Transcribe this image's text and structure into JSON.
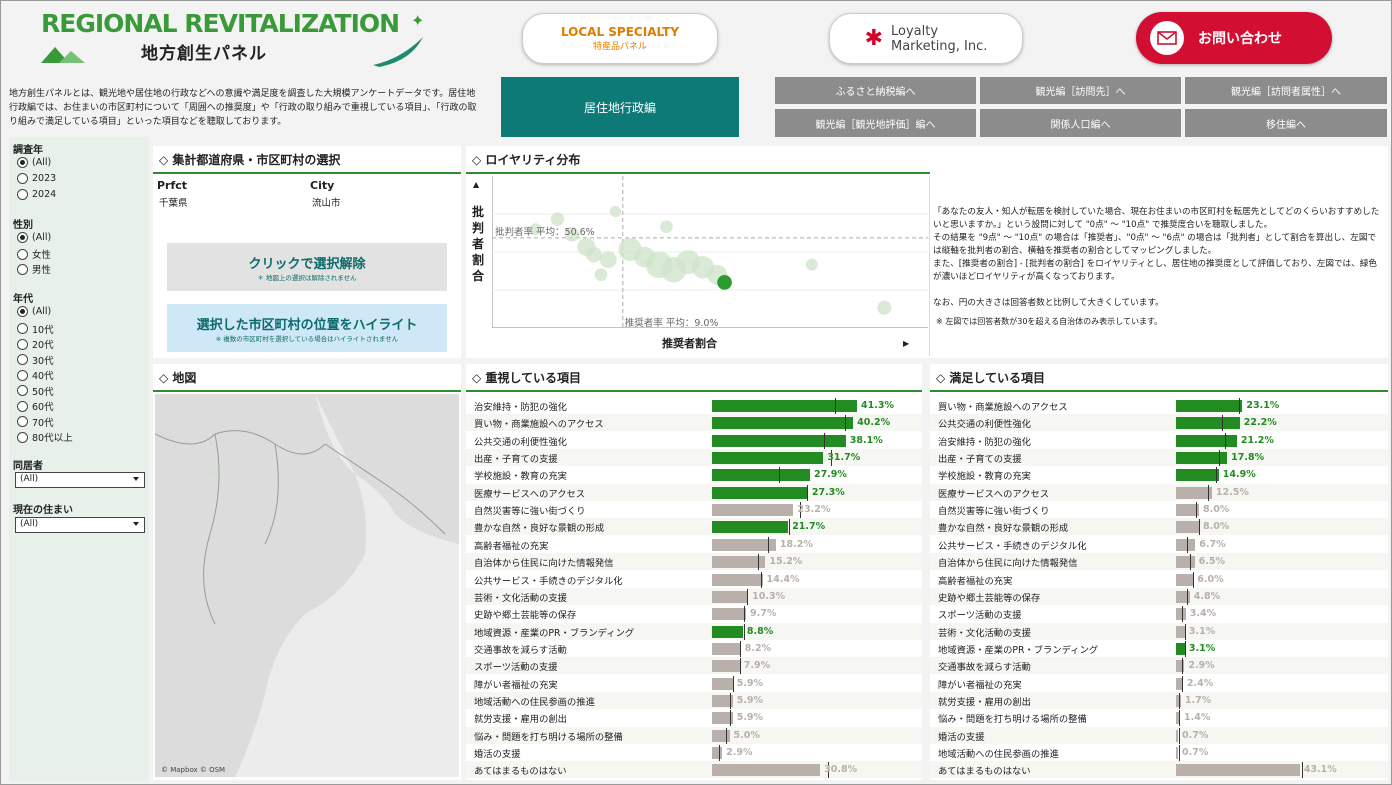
{
  "header": {
    "logo_en": "REGIONAL REVITALIZATION",
    "logo_jp": "地方創生パネル",
    "local_specialty_title": "LOCAL SPECIALTY",
    "local_specialty_sub": "特産品パネル",
    "loyalty_line1": "Loyalty",
    "loyalty_line2": "Marketing, Inc.",
    "contact_label": "お問い合わせ",
    "intro_text": "地方創生パネルとは、観光地や居住地の行政などへの意識や満足度を調査した大規模アンケートデータです。居住地行政編では、お住まいの市区町村について「周囲への推奨度」や「行政の取り組みで重視している項目」、「行政の取り組みで満足している項目」といった項目などを聴取しております。"
  },
  "nav": {
    "active": "居住地行政編",
    "buttons": [
      "ふるさと納税編へ",
      "観光編［訪問先］へ",
      "観光編［訪問者属性］へ",
      "観光編［観光地評価］編へ",
      "関係人口編へ",
      "移住編へ"
    ]
  },
  "filters": {
    "year_label": "調査年",
    "year_options": [
      "(All)",
      "2023",
      "2024"
    ],
    "gender_label": "性別",
    "gender_options": [
      "(All)",
      "女性",
      "男性"
    ],
    "age_label": "年代",
    "age_options": [
      "(All)",
      "10代",
      "20代",
      "30代",
      "40代",
      "50代",
      "60代",
      "70代",
      "80代以上"
    ],
    "cohabit_label": "同居者",
    "cohabit_value": "(All)",
    "residence_label": "現在の住まい",
    "residence_value": "(All)"
  },
  "selection": {
    "title": "集計都道府県・市区町村の選択",
    "col1": "Prfct",
    "col2": "City",
    "val1": "千葉県",
    "val2": "流山市",
    "clear_label": "クリックで選択解除",
    "clear_note": "＊ 地図上の選択は解除されません",
    "highlight_label": "選択した市区町村の位置をハイライト",
    "highlight_note": "※ 複数の市区町村を選択している場合はハイライトされません"
  },
  "loyalty": {
    "title": "ロイヤリティ分布",
    "y_label": "批判者割合",
    "x_label": "推奨者割合",
    "h_ref_label": "批判者率 平均：50.6%",
    "v_ref_label": "推奨者率 平均：9.0%",
    "description": "「あなたの友人・知人が転居を検討していた場合、現在お住まいの市区町村を転居先としてどのくらいおすすめしたいと思いますか。」という設問に対して \"0点\" ～ \"10点\" で推奨度合いを聴取しました。\nその結果を \"9点\" ～ \"10点\" の場合は「推奨者」、\"0点\" ～ \"6点\" の場合は「批判者」として割合を算出し、左図では縦軸を批判者の割合、横軸を推奨者の割合としてマッピングしました。\nまた、[推奨者の割合] - [批判者の割合] をロイヤリティとし、居住地の推奨度として評価しており、左図では、緑色が濃いほどロイヤリティが高くなっております。\n\nなお、円の大きさは回答者数と比例して大きくしています。",
    "note": "※ 左図では回答者数が30を超える自治体のみ表示しています。"
  },
  "map": {
    "title": "地図",
    "credit": "© Mapbox © OSM"
  },
  "chart_data": [
    {
      "type": "bar",
      "title": "重視している項目",
      "categories": [
        "治安維持・防犯の強化",
        "買い物・商業施設へのアクセス",
        "公共交通の利便性強化",
        "出産・子育ての支援",
        "学校施設・教育の充実",
        "医療サービスへのアクセス",
        "自然災害等に強い街づくり",
        "豊かな自然・良好な景観の形成",
        "高齢者福祉の充実",
        "自治体から住民に向けた情報発信",
        "公共サービス・手続きのデジタル化",
        "芸術・文化活動の支援",
        "史跡や郷土芸能等の保存",
        "地域資源・産業のPR・ブランディング",
        "交通事故を減らす活動",
        "スポーツ活動の支援",
        "障がい者福祉の充実",
        "地域活動への住民参画の推進",
        "就労支援・雇用の創出",
        "悩み・問題を打ち明ける場所の整備",
        "婚活の支援",
        "あてはまるものはない"
      ],
      "values": [
        41.3,
        40.2,
        38.1,
        31.7,
        27.9,
        27.3,
        23.2,
        21.7,
        18.2,
        15.2,
        14.4,
        10.3,
        9.7,
        8.8,
        8.2,
        7.9,
        5.9,
        5.9,
        5.9,
        5.0,
        2.9,
        30.8
      ],
      "labels": [
        "41.3%",
        "40.2%",
        "38.1%",
        "31.7%",
        "27.9%",
        "27.3%",
        "23.2%",
        "21.7%",
        "18.2%",
        "15.2%",
        "14.4%",
        "10.3%",
        "9.7%",
        "8.8%",
        "8.2%",
        "7.9%",
        "5.9%",
        "5.9%",
        "5.9%",
        "5.0%",
        "2.9%",
        "30.8%"
      ],
      "highlight": [
        true,
        true,
        true,
        true,
        true,
        true,
        false,
        true,
        false,
        false,
        false,
        false,
        false,
        true,
        false,
        false,
        false,
        false,
        false,
        false,
        false,
        false
      ],
      "reference": [
        35,
        38,
        32,
        34,
        19,
        27,
        25,
        22,
        16,
        13,
        14,
        10,
        9,
        9,
        8,
        8,
        6,
        5,
        5,
        4,
        2,
        33
      ],
      "colors": {
        "high": "#228b22",
        "normal": "#b9b0ac"
      }
    },
    {
      "type": "bar",
      "title": "満足している項目",
      "categories": [
        "買い物・商業施設へのアクセス",
        "公共交通の利便性強化",
        "治安維持・防犯の強化",
        "出産・子育ての支援",
        "学校施設・教育の充実",
        "医療サービスへのアクセス",
        "自然災害等に強い街づくり",
        "豊かな自然・良好な景観の形成",
        "公共サービス・手続きのデジタル化",
        "自治体から住民に向けた情報発信",
        "高齢者福祉の充実",
        "史跡や郷土芸能等の保存",
        "スポーツ活動の支援",
        "芸術・文化活動の支援",
        "地域資源・産業のPR・ブランディング",
        "交通事故を減らす活動",
        "障がい者福祉の充実",
        "就労支援・雇用の創出",
        "悩み・問題を打ち明ける場所の整備",
        "婚活の支援",
        "地域活動への住民参画の推進",
        "あてはまるものはない"
      ],
      "values": [
        23.1,
        22.2,
        21.2,
        17.8,
        14.9,
        12.5,
        8.0,
        8.0,
        6.7,
        6.5,
        6.0,
        4.8,
        3.4,
        3.1,
        3.1,
        2.9,
        2.4,
        1.7,
        1.4,
        0.7,
        0.7,
        43.1
      ],
      "labels": [
        "23.1%",
        "22.2%",
        "21.2%",
        "17.8%",
        "14.9%",
        "12.5%",
        "8.0%",
        "8.0%",
        "6.7%",
        "6.5%",
        "6.0%",
        "4.8%",
        "3.4%",
        "3.1%",
        "3.1%",
        "2.9%",
        "2.4%",
        "1.7%",
        "1.4%",
        "0.7%",
        "0.7%",
        "43.1%"
      ],
      "highlight": [
        true,
        true,
        true,
        true,
        true,
        false,
        false,
        false,
        false,
        false,
        false,
        false,
        false,
        false,
        true,
        false,
        false,
        false,
        false,
        false,
        false,
        false
      ],
      "reference": [
        22,
        16,
        17,
        15,
        14,
        11,
        7,
        8,
        4,
        5,
        6,
        4,
        2,
        3,
        3,
        2,
        2,
        1,
        1,
        1,
        1,
        44
      ],
      "colors": {
        "high": "#228b22",
        "normal": "#b9b0ac"
      }
    },
    {
      "type": "scatter",
      "title": "ロイヤリティ分布",
      "xlabel": "推奨者割合",
      "ylabel": "批判者割合",
      "x_ref": 9.0,
      "y_ref": 50.6,
      "points": [
        {
          "x": 3.0,
          "y": 54,
          "n": 40
        },
        {
          "x": 4.5,
          "y": 58,
          "n": 50
        },
        {
          "x": 5.5,
          "y": 52,
          "n": 60
        },
        {
          "x": 6.5,
          "y": 47,
          "n": 90
        },
        {
          "x": 7.0,
          "y": 44,
          "n": 70
        },
        {
          "x": 8.0,
          "y": 42,
          "n": 80
        },
        {
          "x": 9.5,
          "y": 46,
          "n": 150
        },
        {
          "x": 10.5,
          "y": 43,
          "n": 120
        },
        {
          "x": 11.5,
          "y": 40,
          "n": 200
        },
        {
          "x": 12.5,
          "y": 38,
          "n": 180
        },
        {
          "x": 13.5,
          "y": 41,
          "n": 160
        },
        {
          "x": 14.5,
          "y": 39,
          "n": 140
        },
        {
          "x": 15.5,
          "y": 36,
          "n": 110
        },
        {
          "x": 16.0,
          "y": 33,
          "n": 60,
          "selected": true
        },
        {
          "x": 22.0,
          "y": 40,
          "n": 40
        },
        {
          "x": 27.0,
          "y": 23,
          "n": 55
        },
        {
          "x": 8.5,
          "y": 61,
          "n": 35
        },
        {
          "x": 12.0,
          "y": 55,
          "n": 45
        },
        {
          "x": 7.5,
          "y": 36,
          "n": 45
        }
      ]
    }
  ]
}
